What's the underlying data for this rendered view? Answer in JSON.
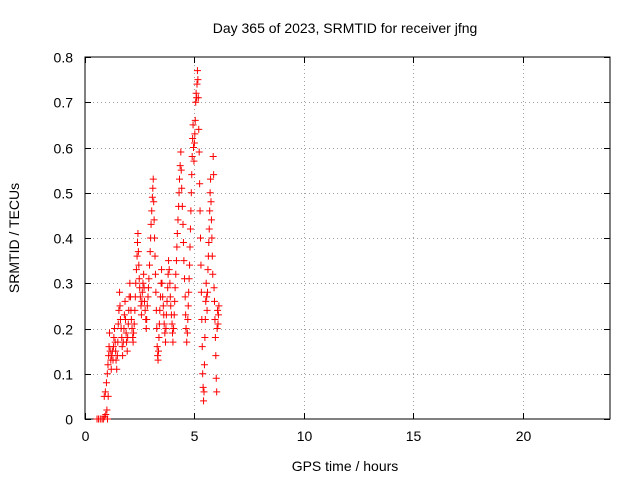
{
  "chart_data": {
    "type": "scatter",
    "title": "Day 365 of 2023, SRMTID for receiver jfng",
    "xlabel": "GPS time / hours",
    "ylabel": "SRMTID / TECUs",
    "xlim": [
      0,
      24
    ],
    "ylim": [
      0,
      0.8
    ],
    "xticks": [
      0,
      5,
      10,
      15,
      20
    ],
    "xtick_labels": [
      "0",
      "5",
      "10",
      "15",
      "20"
    ],
    "yticks": [
      0,
      0.1,
      0.2,
      0.3,
      0.4,
      0.5,
      0.6,
      0.7,
      0.8
    ],
    "ytick_labels": [
      "0",
      "0.1",
      "0.2",
      "0.3",
      "0.4",
      "0.5",
      "0.6",
      "0.7",
      "0.8"
    ],
    "grid": true,
    "marker": "+",
    "color": "#ff0000",
    "series": [
      {
        "name": "jfng",
        "points": [
          [
            0.55,
            0.0
          ],
          [
            0.62,
            0.0
          ],
          [
            0.7,
            0.0
          ],
          [
            0.78,
            0.0
          ],
          [
            0.84,
            0.0
          ],
          [
            0.9,
            0.005
          ],
          [
            0.95,
            0.01
          ],
          [
            1.0,
            0.02
          ],
          [
            1.03,
            0.0
          ],
          [
            1.06,
            0.05
          ],
          [
            0.88,
            0.05
          ],
          [
            0.93,
            0.06
          ],
          [
            0.98,
            0.08
          ],
          [
            1.02,
            0.1
          ],
          [
            1.05,
            0.12
          ],
          [
            1.08,
            0.14
          ],
          [
            1.1,
            0.16
          ],
          [
            1.12,
            0.19
          ],
          [
            1.15,
            0.15
          ],
          [
            1.18,
            0.13
          ],
          [
            1.2,
            0.11
          ],
          [
            1.22,
            0.14
          ],
          [
            1.25,
            0.15
          ],
          [
            1.28,
            0.13
          ],
          [
            1.3,
            0.16
          ],
          [
            1.32,
            0.18
          ],
          [
            1.35,
            0.2
          ],
          [
            1.38,
            0.17
          ],
          [
            1.4,
            0.15
          ],
          [
            1.42,
            0.13
          ],
          [
            1.45,
            0.11
          ],
          [
            1.48,
            0.14
          ],
          [
            1.5,
            0.17
          ],
          [
            1.52,
            0.21
          ],
          [
            1.55,
            0.24
          ],
          [
            1.58,
            0.28
          ],
          [
            1.6,
            0.25
          ],
          [
            1.62,
            0.22
          ],
          [
            1.65,
            0.2
          ],
          [
            1.68,
            0.18
          ],
          [
            1.7,
            0.16
          ],
          [
            1.72,
            0.14
          ],
          [
            1.75,
            0.17
          ],
          [
            1.78,
            0.2
          ],
          [
            1.8,
            0.23
          ],
          [
            1.83,
            0.26
          ],
          [
            1.85,
            0.22
          ],
          [
            1.88,
            0.19
          ],
          [
            1.9,
            0.17
          ],
          [
            1.93,
            0.15
          ],
          [
            1.95,
            0.18
          ],
          [
            1.98,
            0.21
          ],
          [
            2.0,
            0.24
          ],
          [
            2.02,
            0.27
          ],
          [
            2.05,
            0.3
          ],
          [
            2.08,
            0.27
          ],
          [
            2.1,
            0.24
          ],
          [
            2.12,
            0.22
          ],
          [
            2.15,
            0.2
          ],
          [
            2.18,
            0.18
          ],
          [
            2.2,
            0.17
          ],
          [
            2.22,
            0.19
          ],
          [
            2.25,
            0.21
          ],
          [
            2.28,
            0.24
          ],
          [
            2.3,
            0.27
          ],
          [
            2.32,
            0.3
          ],
          [
            2.35,
            0.33
          ],
          [
            2.38,
            0.36
          ],
          [
            2.4,
            0.39
          ],
          [
            2.42,
            0.41
          ],
          [
            2.44,
            0.37
          ],
          [
            2.46,
            0.34
          ],
          [
            2.48,
            0.31
          ],
          [
            2.5,
            0.29
          ],
          [
            2.53,
            0.27
          ],
          [
            2.56,
            0.25
          ],
          [
            2.58,
            0.23
          ],
          [
            2.6,
            0.26
          ],
          [
            2.62,
            0.28
          ],
          [
            2.65,
            0.3
          ],
          [
            2.68,
            0.32
          ],
          [
            2.7,
            0.29
          ],
          [
            2.72,
            0.26
          ],
          [
            2.75,
            0.24
          ],
          [
            2.78,
            0.22
          ],
          [
            2.8,
            0.2
          ],
          [
            2.82,
            0.22
          ],
          [
            2.85,
            0.25
          ],
          [
            2.88,
            0.27
          ],
          [
            2.9,
            0.29
          ],
          [
            2.92,
            0.31
          ],
          [
            2.95,
            0.34
          ],
          [
            2.98,
            0.37
          ],
          [
            3.0,
            0.4
          ],
          [
            3.02,
            0.43
          ],
          [
            3.05,
            0.46
          ],
          [
            3.08,
            0.49
          ],
          [
            3.1,
            0.51
          ],
          [
            3.12,
            0.53
          ],
          [
            3.14,
            0.48
          ],
          [
            3.16,
            0.44
          ],
          [
            3.18,
            0.4
          ],
          [
            3.2,
            0.36
          ],
          [
            3.22,
            0.32
          ],
          [
            3.24,
            0.28
          ],
          [
            3.26,
            0.24
          ],
          [
            3.28,
            0.2
          ],
          [
            3.3,
            0.16
          ],
          [
            3.32,
            0.14
          ],
          [
            3.34,
            0.13
          ],
          [
            3.36,
            0.15
          ],
          [
            3.38,
            0.18
          ],
          [
            3.4,
            0.21
          ],
          [
            3.42,
            0.24
          ],
          [
            3.45,
            0.27
          ],
          [
            3.48,
            0.3
          ],
          [
            3.5,
            0.33
          ],
          [
            3.52,
            0.3
          ],
          [
            3.55,
            0.27
          ],
          [
            3.58,
            0.25
          ],
          [
            3.6,
            0.23
          ],
          [
            3.62,
            0.21
          ],
          [
            3.65,
            0.19
          ],
          [
            3.68,
            0.17
          ],
          [
            3.7,
            0.2
          ],
          [
            3.72,
            0.23
          ],
          [
            3.75,
            0.26
          ],
          [
            3.78,
            0.29
          ],
          [
            3.8,
            0.32
          ],
          [
            3.82,
            0.35
          ],
          [
            3.85,
            0.33
          ],
          [
            3.88,
            0.3
          ],
          [
            3.9,
            0.27
          ],
          [
            3.92,
            0.25
          ],
          [
            3.95,
            0.23
          ],
          [
            3.98,
            0.21
          ],
          [
            4.0,
            0.19
          ],
          [
            4.02,
            0.17
          ],
          [
            4.05,
            0.2
          ],
          [
            4.08,
            0.23
          ],
          [
            4.1,
            0.26
          ],
          [
            4.12,
            0.29
          ],
          [
            4.15,
            0.32
          ],
          [
            4.18,
            0.35
          ],
          [
            4.2,
            0.38
          ],
          [
            4.22,
            0.41
          ],
          [
            4.25,
            0.44
          ],
          [
            4.28,
            0.47
          ],
          [
            4.3,
            0.5
          ],
          [
            4.32,
            0.53
          ],
          [
            4.35,
            0.56
          ],
          [
            4.38,
            0.59
          ],
          [
            4.4,
            0.55
          ],
          [
            4.42,
            0.51
          ],
          [
            4.45,
            0.47
          ],
          [
            4.48,
            0.43
          ],
          [
            4.5,
            0.39
          ],
          [
            4.52,
            0.35
          ],
          [
            4.55,
            0.31
          ],
          [
            4.58,
            0.27
          ],
          [
            4.6,
            0.23
          ],
          [
            4.62,
            0.2
          ],
          [
            4.65,
            0.17
          ],
          [
            4.68,
            0.19
          ],
          [
            4.7,
            0.22
          ],
          [
            4.72,
            0.25
          ],
          [
            4.74,
            0.28
          ],
          [
            4.76,
            0.31
          ],
          [
            4.78,
            0.34
          ],
          [
            4.8,
            0.38
          ],
          [
            4.82,
            0.42
          ],
          [
            4.84,
            0.46
          ],
          [
            4.86,
            0.5
          ],
          [
            4.88,
            0.54
          ],
          [
            4.9,
            0.58
          ],
          [
            4.92,
            0.62
          ],
          [
            4.94,
            0.65
          ],
          [
            4.96,
            0.6
          ],
          [
            4.98,
            0.57
          ],
          [
            5.0,
            0.61
          ],
          [
            5.02,
            0.63
          ],
          [
            5.04,
            0.66
          ],
          [
            5.06,
            0.7
          ],
          [
            5.08,
            0.72
          ],
          [
            5.1,
            0.71
          ],
          [
            5.12,
            0.74
          ],
          [
            5.14,
            0.77
          ],
          [
            5.16,
            0.75
          ],
          [
            5.18,
            0.71
          ],
          [
            5.2,
            0.64
          ],
          [
            5.22,
            0.59
          ],
          [
            5.24,
            0.52
          ],
          [
            5.26,
            0.46
          ],
          [
            5.28,
            0.4
          ],
          [
            5.3,
            0.34
          ],
          [
            5.32,
            0.28
          ],
          [
            5.34,
            0.22
          ],
          [
            5.36,
            0.16
          ],
          [
            5.38,
            0.1
          ],
          [
            5.4,
            0.07
          ],
          [
            5.42,
            0.04
          ],
          [
            5.44,
            0.06
          ],
          [
            5.46,
            0.12
          ],
          [
            5.48,
            0.18
          ],
          [
            5.5,
            0.22
          ],
          [
            5.52,
            0.26
          ],
          [
            5.54,
            0.3
          ],
          [
            5.56,
            0.27
          ],
          [
            5.58,
            0.24
          ],
          [
            5.6,
            0.28
          ],
          [
            5.62,
            0.33
          ],
          [
            5.64,
            0.36
          ],
          [
            5.66,
            0.39
          ],
          [
            5.68,
            0.42
          ],
          [
            5.7,
            0.46
          ],
          [
            5.72,
            0.5
          ],
          [
            5.74,
            0.53
          ],
          [
            5.76,
            0.48
          ],
          [
            5.78,
            0.44
          ],
          [
            5.8,
            0.4
          ],
          [
            5.82,
            0.36
          ],
          [
            5.84,
            0.32
          ],
          [
            5.86,
            0.58
          ],
          [
            5.88,
            0.54
          ],
          [
            5.9,
            0.29
          ],
          [
            5.92,
            0.26
          ],
          [
            5.94,
            0.22
          ],
          [
            5.96,
            0.18
          ],
          [
            5.98,
            0.14
          ],
          [
            6.0,
            0.09
          ],
          [
            6.02,
            0.06
          ],
          [
            6.04,
            0.2
          ],
          [
            6.06,
            0.24
          ],
          [
            6.08,
            0.21
          ],
          [
            6.1,
            0.23
          ],
          [
            6.12,
            0.25
          ]
        ]
      }
    ]
  }
}
